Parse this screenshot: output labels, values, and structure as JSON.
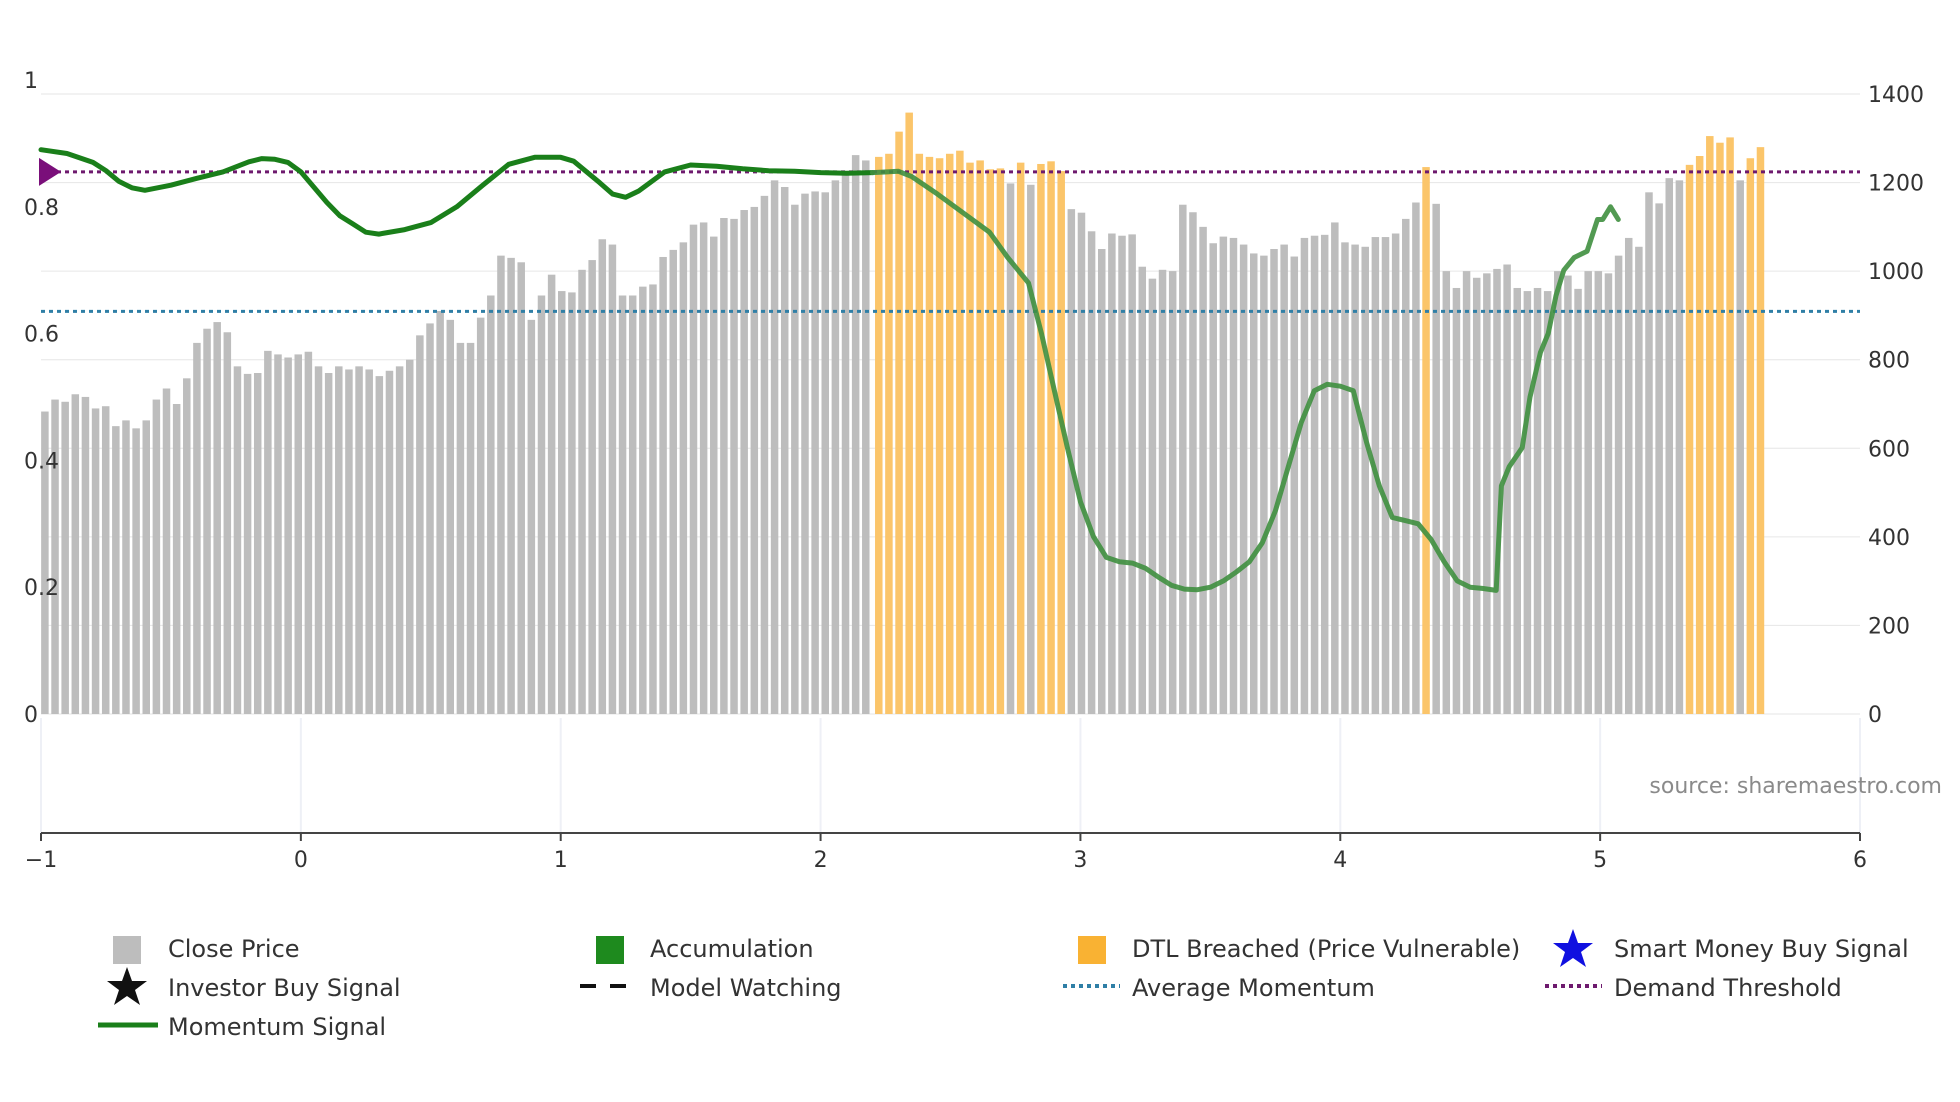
{
  "chart_data": {
    "type": "bar+line",
    "source_text": "source: sharemaestro.com",
    "left_axis": {
      "range": [
        0,
        1
      ],
      "ticks": [
        "0",
        "0.2",
        "0.4",
        "0.6",
        "0.8",
        "1"
      ]
    },
    "right_axis": {
      "range": [
        0,
        1400
      ],
      "ticks": [
        "0",
        "200",
        "400",
        "600",
        "800",
        "1000",
        "1200",
        "1400"
      ]
    },
    "x_axis": {
      "range": [
        -1,
        6
      ],
      "ticks": [
        "−1",
        "0",
        "1",
        "2",
        "3",
        "4",
        "5",
        "6"
      ]
    },
    "colors": {
      "close_price": "#bdbdbd",
      "dtl_breached": "#fbc56a",
      "momentum": "#1a7f1a",
      "momentum_light": "#3f8f3f",
      "average_momentum": "#2f7fa6",
      "demand_threshold": "#6e1a6e",
      "demand_marker": "#7a0f7a"
    },
    "average_momentum": 0.635,
    "demand_threshold": 0.855,
    "price_bars": [
      {
        "x": -0.985,
        "v": 683,
        "breach": false
      },
      {
        "x": -0.946,
        "v": 710,
        "breach": false
      },
      {
        "x": -0.907,
        "v": 705,
        "breach": false
      },
      {
        "x": -0.868,
        "v": 722,
        "breach": false
      },
      {
        "x": -0.829,
        "v": 716,
        "breach": false
      },
      {
        "x": -0.79,
        "v": 690,
        "breach": false
      },
      {
        "x": -0.751,
        "v": 695,
        "breach": false
      },
      {
        "x": -0.712,
        "v": 650,
        "breach": false
      },
      {
        "x": -0.673,
        "v": 663,
        "breach": false
      },
      {
        "x": -0.634,
        "v": 645,
        "breach": false
      },
      {
        "x": -0.595,
        "v": 663,
        "breach": false
      },
      {
        "x": -0.556,
        "v": 710,
        "breach": false
      },
      {
        "x": -0.517,
        "v": 735,
        "breach": false
      },
      {
        "x": -0.478,
        "v": 700,
        "breach": false
      },
      {
        "x": -0.439,
        "v": 758,
        "breach": false
      },
      {
        "x": -0.4,
        "v": 838,
        "breach": false
      },
      {
        "x": -0.361,
        "v": 870,
        "breach": false
      },
      {
        "x": -0.322,
        "v": 885,
        "breach": false
      },
      {
        "x": -0.283,
        "v": 862,
        "breach": false
      },
      {
        "x": -0.244,
        "v": 785,
        "breach": false
      },
      {
        "x": -0.205,
        "v": 768,
        "breach": false
      },
      {
        "x": -0.166,
        "v": 770,
        "breach": false
      },
      {
        "x": -0.127,
        "v": 820,
        "breach": false
      },
      {
        "x": -0.088,
        "v": 812,
        "breach": false
      },
      {
        "x": -0.049,
        "v": 805,
        "breach": false
      },
      {
        "x": -0.01,
        "v": 812,
        "breach": false
      },
      {
        "x": 0.029,
        "v": 818,
        "breach": false
      },
      {
        "x": 0.068,
        "v": 785,
        "breach": false
      },
      {
        "x": 0.107,
        "v": 770,
        "breach": false
      },
      {
        "x": 0.146,
        "v": 785,
        "breach": false
      },
      {
        "x": 0.185,
        "v": 778,
        "breach": false
      },
      {
        "x": 0.224,
        "v": 785,
        "breach": false
      },
      {
        "x": 0.263,
        "v": 778,
        "breach": false
      },
      {
        "x": 0.302,
        "v": 763,
        "breach": false
      },
      {
        "x": 0.341,
        "v": 775,
        "breach": false
      },
      {
        "x": 0.38,
        "v": 785,
        "breach": false
      },
      {
        "x": 0.419,
        "v": 800,
        "breach": false
      },
      {
        "x": 0.458,
        "v": 855,
        "breach": false
      },
      {
        "x": 0.497,
        "v": 882,
        "breach": false
      },
      {
        "x": 0.536,
        "v": 910,
        "breach": false
      },
      {
        "x": 0.575,
        "v": 890,
        "breach": false
      },
      {
        "x": 0.614,
        "v": 838,
        "breach": false
      },
      {
        "x": 0.653,
        "v": 838,
        "breach": false
      },
      {
        "x": 0.692,
        "v": 895,
        "breach": false
      },
      {
        "x": 0.731,
        "v": 945,
        "breach": false
      },
      {
        "x": 0.77,
        "v": 1035,
        "breach": false
      },
      {
        "x": 0.809,
        "v": 1030,
        "breach": false
      },
      {
        "x": 0.848,
        "v": 1020,
        "breach": false
      },
      {
        "x": 0.887,
        "v": 890,
        "breach": false
      },
      {
        "x": 0.926,
        "v": 945,
        "breach": false
      },
      {
        "x": 0.965,
        "v": 992,
        "breach": false
      },
      {
        "x": 1.004,
        "v": 955,
        "breach": false
      },
      {
        "x": 1.043,
        "v": 952,
        "breach": false
      },
      {
        "x": 1.082,
        "v": 1003,
        "breach": false
      },
      {
        "x": 1.121,
        "v": 1025,
        "breach": false
      },
      {
        "x": 1.16,
        "v": 1072,
        "breach": false
      },
      {
        "x": 1.199,
        "v": 1060,
        "breach": false
      },
      {
        "x": 1.238,
        "v": 945,
        "breach": false
      },
      {
        "x": 1.277,
        "v": 945,
        "breach": false
      },
      {
        "x": 1.316,
        "v": 965,
        "breach": false
      },
      {
        "x": 1.355,
        "v": 970,
        "breach": false
      },
      {
        "x": 1.394,
        "v": 1032,
        "breach": false
      },
      {
        "x": 1.433,
        "v": 1048,
        "breach": false
      },
      {
        "x": 1.472,
        "v": 1065,
        "breach": false
      },
      {
        "x": 1.511,
        "v": 1105,
        "breach": false
      },
      {
        "x": 1.55,
        "v": 1110,
        "breach": false
      },
      {
        "x": 1.589,
        "v": 1078,
        "breach": false
      },
      {
        "x": 1.628,
        "v": 1120,
        "breach": false
      },
      {
        "x": 1.667,
        "v": 1118,
        "breach": false
      },
      {
        "x": 1.706,
        "v": 1138,
        "breach": false
      },
      {
        "x": 1.745,
        "v": 1145,
        "breach": false
      },
      {
        "x": 1.784,
        "v": 1170,
        "breach": false
      },
      {
        "x": 1.823,
        "v": 1205,
        "breach": false
      },
      {
        "x": 2.224,
        "v": 1258,
        "breach": true
      },
      {
        "x": 2.263,
        "v": 1265,
        "breach": true
      },
      {
        "x": 2.302,
        "v": 1315,
        "breach": true
      },
      {
        "x": 2.341,
        "v": 1358,
        "breach": true
      },
      {
        "x": 2.38,
        "v": 1265,
        "breach": true
      },
      {
        "x": 2.419,
        "v": 1258,
        "breach": true
      },
      {
        "x": 2.458,
        "v": 1255,
        "breach": true
      },
      {
        "x": 2.497,
        "v": 1265,
        "breach": true
      },
      {
        "x": 2.536,
        "v": 1272,
        "breach": true
      },
      {
        "x": 2.575,
        "v": 1245,
        "breach": true
      },
      {
        "x": 2.614,
        "v": 1250,
        "breach": true
      },
      {
        "x": 2.653,
        "v": 1230,
        "breach": true
      },
      {
        "x": 2.692,
        "v": 1232,
        "breach": true
      },
      {
        "x": 2.731,
        "v": 1198,
        "breach": false
      },
      {
        "x": 2.77,
        "v": 1245,
        "breach": true
      },
      {
        "x": 2.809,
        "v": 1195,
        "breach": false
      },
      {
        "x": 2.848,
        "v": 1242,
        "breach": true
      },
      {
        "x": 2.887,
        "v": 1248,
        "breach": true
      },
      {
        "x": 2.926,
        "v": 1226,
        "breach": true
      },
      {
        "x": 2.965,
        "v": 1140,
        "breach": false
      },
      {
        "x": 3.004,
        "v": 1132,
        "breach": false
      },
      {
        "x": 3.043,
        "v": 1090,
        "breach": false
      },
      {
        "x": 3.082,
        "v": 1050,
        "breach": false
      },
      {
        "x": 3.121,
        "v": 1085,
        "breach": false
      },
      {
        "x": 3.16,
        "v": 1080,
        "breach": false
      },
      {
        "x": 3.199,
        "v": 1083,
        "breach": false
      },
      {
        "x": 3.238,
        "v": 1010,
        "breach": false
      },
      {
        "x": 3.277,
        "v": 983,
        "breach": false
      },
      {
        "x": 3.316,
        "v": 1003,
        "breach": false
      },
      {
        "x": 3.355,
        "v": 1000,
        "breach": false
      },
      {
        "x": 3.394,
        "v": 1150,
        "breach": false
      },
      {
        "x": 3.433,
        "v": 1133,
        "breach": false
      },
      {
        "x": 3.472,
        "v": 1100,
        "breach": false
      },
      {
        "x": 3.511,
        "v": 1063,
        "breach": false
      },
      {
        "x": 3.55,
        "v": 1078,
        "breach": false
      },
      {
        "x": 3.589,
        "v": 1075,
        "breach": false
      },
      {
        "x": 3.628,
        "v": 1060,
        "breach": false
      },
      {
        "x": 3.667,
        "v": 1040,
        "breach": false
      },
      {
        "x": 3.706,
        "v": 1035,
        "breach": false
      },
      {
        "x": 3.745,
        "v": 1050,
        "breach": false
      },
      {
        "x": 3.784,
        "v": 1060,
        "breach": false
      },
      {
        "x": 3.823,
        "v": 1033,
        "breach": false
      },
      {
        "x": 3.862,
        "v": 1075,
        "breach": false
      },
      {
        "x": 3.901,
        "v": 1080,
        "breach": false
      },
      {
        "x": 3.94,
        "v": 1082,
        "breach": false
      },
      {
        "x": 3.979,
        "v": 1110,
        "breach": false
      },
      {
        "x": 4.018,
        "v": 1065,
        "breach": false
      },
      {
        "x": 4.057,
        "v": 1060,
        "breach": false
      },
      {
        "x": 4.096,
        "v": 1055,
        "breach": false
      },
      {
        "x": 4.135,
        "v": 1077,
        "breach": false
      },
      {
        "x": 4.174,
        "v": 1077,
        "breach": false
      },
      {
        "x": 4.213,
        "v": 1085,
        "breach": false
      },
      {
        "x": 4.252,
        "v": 1118,
        "breach": false
      },
      {
        "x": 4.291,
        "v": 1155,
        "breach": false
      },
      {
        "x": 4.33,
        "v": 1235,
        "breach": true
      },
      {
        "x": 4.369,
        "v": 1152,
        "breach": false
      },
      {
        "x": 4.408,
        "v": 1000,
        "breach": false
      },
      {
        "x": 4.447,
        "v": 962,
        "breach": false
      },
      {
        "x": 4.486,
        "v": 1000,
        "breach": false
      },
      {
        "x": 4.525,
        "v": 985,
        "breach": false
      },
      {
        "x": 4.564,
        "v": 995,
        "breach": false
      },
      {
        "x": 4.603,
        "v": 1005,
        "breach": false
      },
      {
        "x": 4.642,
        "v": 1015,
        "breach": false
      },
      {
        "x": 4.681,
        "v": 962,
        "breach": false
      },
      {
        "x": 4.72,
        "v": 955,
        "breach": false
      },
      {
        "x": 4.759,
        "v": 962,
        "breach": false
      },
      {
        "x": 4.798,
        "v": 955,
        "breach": false
      },
      {
        "x": 4.837,
        "v": 1000,
        "breach": false
      },
      {
        "x": 4.876,
        "v": 990,
        "breach": false
      },
      {
        "x": 4.915,
        "v": 960,
        "breach": false
      },
      {
        "x": 4.954,
        "v": 1000,
        "breach": false
      },
      {
        "x": 4.993,
        "v": 1000,
        "breach": false
      },
      {
        "x": 5.032,
        "v": 995,
        "breach": false
      },
      {
        "x": 5.071,
        "v": 1035,
        "breach": false
      },
      {
        "x": 5.11,
        "v": 1075,
        "breach": false
      },
      {
        "x": 5.149,
        "v": 1055,
        "breach": false
      },
      {
        "x": 5.188,
        "v": 1178,
        "breach": false
      },
      {
        "x": 5.227,
        "v": 1153,
        "breach": false
      },
      {
        "x": 5.266,
        "v": 1210,
        "breach": false
      },
      {
        "x": 5.305,
        "v": 1205,
        "breach": false
      },
      {
        "x": 5.344,
        "v": 1240,
        "breach": true
      },
      {
        "x": 5.383,
        "v": 1260,
        "breach": true
      },
      {
        "x": 5.422,
        "v": 1305,
        "breach": true
      },
      {
        "x": 5.461,
        "v": 1290,
        "breach": true
      },
      {
        "x": 5.5,
        "v": 1302,
        "breach": true
      },
      {
        "x": 5.539,
        "v": 1205,
        "breach": false
      },
      {
        "x": 5.578,
        "v": 1255,
        "breach": true
      },
      {
        "x": 5.617,
        "v": 1280,
        "breach": true
      },
      {
        "x": 1.862,
        "v": 1190,
        "breach": false
      },
      {
        "x": 1.901,
        "v": 1150,
        "breach": false
      },
      {
        "x": 1.94,
        "v": 1175,
        "breach": false
      },
      {
        "x": 1.979,
        "v": 1180,
        "breach": false
      },
      {
        "x": 2.018,
        "v": 1178,
        "breach": false
      },
      {
        "x": 2.057,
        "v": 1205,
        "breach": false
      },
      {
        "x": 2.096,
        "v": 1225,
        "breach": false
      },
      {
        "x": 2.135,
        "v": 1262,
        "breach": false
      },
      {
        "x": 2.174,
        "v": 1250,
        "breach": false
      }
    ],
    "momentum": [
      [
        -1.0,
        0.89
      ],
      [
        -0.9,
        0.884
      ],
      [
        -0.8,
        0.87
      ],
      [
        -0.75,
        0.857
      ],
      [
        -0.7,
        0.84
      ],
      [
        -0.65,
        0.83
      ],
      [
        -0.6,
        0.826
      ],
      [
        -0.5,
        0.834
      ],
      [
        -0.4,
        0.845
      ],
      [
        -0.3,
        0.855
      ],
      [
        -0.2,
        0.871
      ],
      [
        -0.15,
        0.876
      ],
      [
        -0.1,
        0.875
      ],
      [
        -0.05,
        0.87
      ],
      [
        0.0,
        0.855
      ],
      [
        0.1,
        0.807
      ],
      [
        0.15,
        0.786
      ],
      [
        0.2,
        0.773
      ],
      [
        0.25,
        0.76
      ],
      [
        0.3,
        0.757
      ],
      [
        0.4,
        0.764
      ],
      [
        0.5,
        0.775
      ],
      [
        0.6,
        0.8
      ],
      [
        0.7,
        0.834
      ],
      [
        0.8,
        0.867
      ],
      [
        0.9,
        0.878
      ],
      [
        1.0,
        0.878
      ],
      [
        1.05,
        0.872
      ],
      [
        1.1,
        0.855
      ],
      [
        1.15,
        0.838
      ],
      [
        1.2,
        0.82
      ],
      [
        1.25,
        0.815
      ],
      [
        1.3,
        0.825
      ],
      [
        1.4,
        0.855
      ],
      [
        1.5,
        0.866
      ],
      [
        1.6,
        0.864
      ],
      [
        1.7,
        0.86
      ],
      [
        1.8,
        0.857
      ],
      [
        1.9,
        0.856
      ],
      [
        2.0,
        0.854
      ],
      [
        2.1,
        0.853
      ],
      [
        2.2,
        0.854
      ],
      [
        2.3,
        0.856
      ],
      [
        2.35,
        0.848
      ],
      [
        2.45,
        0.82
      ],
      [
        2.55,
        0.79
      ],
      [
        2.65,
        0.76
      ],
      [
        2.72,
        0.72
      ],
      [
        2.8,
        0.68
      ],
      [
        2.85,
        0.6
      ],
      [
        2.9,
        0.51
      ],
      [
        2.95,
        0.42
      ],
      [
        3.0,
        0.335
      ],
      [
        3.05,
        0.28
      ],
      [
        3.1,
        0.247
      ],
      [
        3.15,
        0.24
      ],
      [
        3.2,
        0.238
      ],
      [
        3.25,
        0.23
      ],
      [
        3.3,
        0.216
      ],
      [
        3.35,
        0.203
      ],
      [
        3.4,
        0.197
      ],
      [
        3.45,
        0.196
      ],
      [
        3.5,
        0.2
      ],
      [
        3.55,
        0.21
      ],
      [
        3.6,
        0.224
      ],
      [
        3.65,
        0.24
      ],
      [
        3.7,
        0.27
      ],
      [
        3.75,
        0.32
      ],
      [
        3.8,
        0.39
      ],
      [
        3.85,
        0.46
      ],
      [
        3.9,
        0.51
      ],
      [
        3.95,
        0.52
      ],
      [
        4.0,
        0.517
      ],
      [
        4.05,
        0.51
      ],
      [
        4.1,
        0.43
      ],
      [
        4.15,
        0.36
      ],
      [
        4.2,
        0.31
      ],
      [
        4.25,
        0.305
      ],
      [
        4.3,
        0.3
      ],
      [
        4.35,
        0.275
      ],
      [
        4.4,
        0.24
      ],
      [
        4.45,
        0.21
      ],
      [
        4.5,
        0.2
      ],
      [
        4.55,
        0.198
      ],
      [
        4.6,
        0.195
      ],
      [
        4.62,
        0.36
      ],
      [
        4.65,
        0.39
      ],
      [
        4.7,
        0.42
      ],
      [
        4.73,
        0.5
      ],
      [
        4.77,
        0.57
      ],
      [
        4.8,
        0.6
      ],
      [
        4.83,
        0.66
      ],
      [
        4.86,
        0.7
      ],
      [
        4.9,
        0.72
      ],
      [
        4.95,
        0.73
      ],
      [
        4.99,
        0.78
      ],
      [
        5.01,
        0.78
      ],
      [
        5.04,
        0.8
      ],
      [
        5.07,
        0.78
      ]
    ]
  },
  "legend": {
    "close_price": "Close Price",
    "accumulation": "Accumulation",
    "dtl_breached": "DTL Breached (Price Vulnerable)",
    "smart_money": "Smart Money Buy Signal",
    "investor_buy": "Investor Buy Signal",
    "model_watching": "Model Watching",
    "average_momentum": "Average Momentum",
    "demand_threshold": "Demand Threshold",
    "momentum_signal": "Momentum Signal"
  }
}
